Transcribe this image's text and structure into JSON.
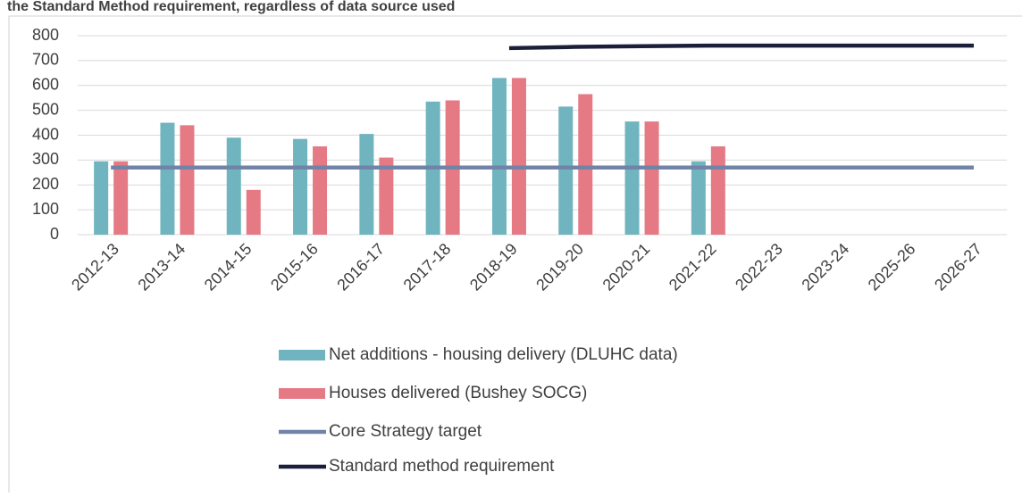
{
  "chart_data": {
    "type": "bar",
    "title": "the Standard Method requirement, regardless of data source used",
    "categories": [
      "2012-13",
      "2013-14",
      "2014-15",
      "2015-16",
      "2016-17",
      "2017-18",
      "2018-19",
      "2019-20",
      "2020-21",
      "2021-22",
      "2022-23",
      "2023-24",
      "2025-26",
      "2026-27"
    ],
    "series": [
      {
        "name": "Net additions - housing delivery (DLUHC data)",
        "color": "#6fb4bf",
        "kind": "bar",
        "values": [
          295,
          450,
          390,
          385,
          405,
          535,
          630,
          515,
          455,
          295,
          null,
          null,
          null,
          null
        ]
      },
      {
        "name": "Houses delivered (Bushey SOCG)",
        "color": "#e57a85",
        "kind": "bar",
        "values": [
          295,
          440,
          180,
          355,
          310,
          540,
          630,
          565,
          455,
          355,
          null,
          null,
          null,
          null
        ]
      },
      {
        "name": "Core Strategy target",
        "color": "#7283a8",
        "kind": "line",
        "values": [
          270,
          270,
          270,
          270,
          270,
          270,
          270,
          270,
          270,
          270,
          270,
          270,
          270,
          270
        ]
      },
      {
        "name": "Standard method requirement",
        "color": "#1c1f3a",
        "kind": "line",
        "values": [
          null,
          null,
          null,
          null,
          null,
          null,
          750,
          755,
          758,
          760,
          760,
          760,
          760,
          760
        ]
      }
    ],
    "ylim": [
      0,
      800
    ],
    "yticks": [
      0,
      100,
      200,
      300,
      400,
      500,
      600,
      700,
      800
    ],
    "grid": true
  }
}
